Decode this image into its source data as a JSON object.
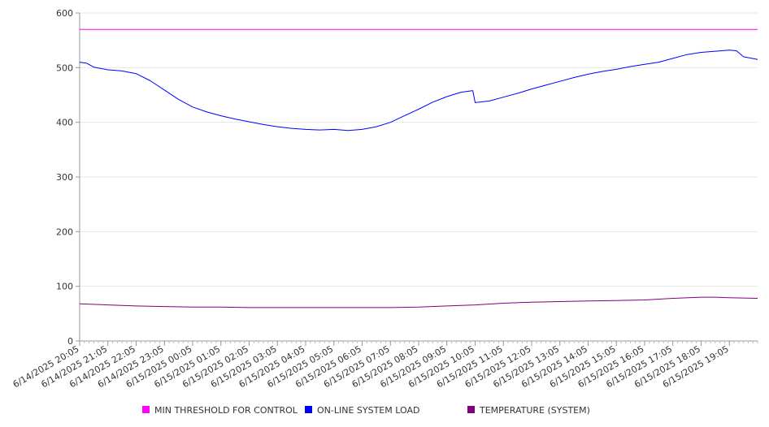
{
  "chart_data": {
    "type": "line",
    "title": "",
    "xlabel": "",
    "ylabel": "",
    "ylim": [
      0,
      600
    ],
    "yticks": [
      0,
      100,
      200,
      300,
      400,
      500,
      600
    ],
    "grid": "horizontal",
    "legend_position": "bottom",
    "x_tick_labels": [
      "6/14/2025 20:05",
      "6/14/2025 21:05",
      "6/14/2025 22:05",
      "6/14/2025 23:05",
      "6/15/2025 00:05",
      "6/15/2025 01:05",
      "6/15/2025 02:05",
      "6/15/2025 03:05",
      "6/15/2025 04:05",
      "6/15/2025 05:05",
      "6/15/2025 06:05",
      "6/15/2025 07:05",
      "6/15/2025 08:05",
      "6/15/2025 09:05",
      "6/15/2025 10:05",
      "6/15/2025 11:05",
      "6/15/2025 12:05",
      "6/15/2025 13:05",
      "6/15/2025 14:05",
      "6/15/2025 15:05",
      "6/15/2025 16:05",
      "6/15/2025 17:05",
      "6/15/2025 18:05",
      "6/15/2025 19:05"
    ],
    "x_range": [
      "6/14/2025 20:05",
      "6/15/2025 20:05"
    ],
    "series": [
      {
        "name": "MIN THRESHOLD FOR CONTROL",
        "color": "#ff00ff",
        "points": [
          [
            "6/14/2025 20:05",
            570
          ],
          [
            "6/15/2025 20:05",
            570
          ]
        ]
      },
      {
        "name": "ON-LINE SYSTEM LOAD",
        "color": "#0000ff",
        "points": [
          [
            "6/14/2025 20:05",
            510
          ],
          [
            "6/14/2025 20:20",
            508
          ],
          [
            "6/14/2025 20:35",
            501
          ],
          [
            "6/14/2025 21:05",
            496
          ],
          [
            "6/14/2025 21:35",
            494
          ],
          [
            "6/14/2025 22:05",
            489
          ],
          [
            "6/14/2025 22:35",
            476
          ],
          [
            "6/14/2025 23:05",
            459
          ],
          [
            "6/14/2025 23:35",
            442
          ],
          [
            "6/15/2025 00:05",
            428
          ],
          [
            "6/15/2025 00:35",
            419
          ],
          [
            "6/15/2025 01:05",
            412
          ],
          [
            "6/15/2025 01:35",
            406
          ],
          [
            "6/15/2025 02:05",
            401
          ],
          [
            "6/15/2025 02:35",
            396
          ],
          [
            "6/15/2025 03:05",
            392
          ],
          [
            "6/15/2025 03:35",
            389
          ],
          [
            "6/15/2025 04:05",
            387
          ],
          [
            "6/15/2025 04:35",
            386
          ],
          [
            "6/15/2025 05:05",
            387
          ],
          [
            "6/15/2025 05:35",
            385
          ],
          [
            "6/15/2025 06:05",
            387
          ],
          [
            "6/15/2025 06:35",
            392
          ],
          [
            "6/15/2025 07:05",
            400
          ],
          [
            "6/15/2025 07:35",
            412
          ],
          [
            "6/15/2025 08:05",
            424
          ],
          [
            "6/15/2025 08:35",
            437
          ],
          [
            "6/15/2025 09:05",
            447
          ],
          [
            "6/15/2025 09:35",
            455
          ],
          [
            "6/15/2025 10:00",
            458
          ],
          [
            "6/15/2025 10:05",
            436
          ],
          [
            "6/15/2025 10:35",
            439
          ],
          [
            "6/15/2025 11:05",
            446
          ],
          [
            "6/15/2025 11:35",
            453
          ],
          [
            "6/15/2025 12:05",
            461
          ],
          [
            "6/15/2025 12:35",
            468
          ],
          [
            "6/15/2025 13:05",
            475
          ],
          [
            "6/15/2025 13:35",
            482
          ],
          [
            "6/15/2025 14:05",
            488
          ],
          [
            "6/15/2025 14:35",
            493
          ],
          [
            "6/15/2025 15:05",
            497
          ],
          [
            "6/15/2025 15:35",
            502
          ],
          [
            "6/15/2025 16:05",
            506
          ],
          [
            "6/15/2025 16:35",
            510
          ],
          [
            "6/15/2025 17:05",
            517
          ],
          [
            "6/15/2025 17:35",
            524
          ],
          [
            "6/15/2025 18:05",
            528
          ],
          [
            "6/15/2025 18:35",
            530
          ],
          [
            "6/15/2025 19:05",
            532
          ],
          [
            "6/15/2025 19:20",
            531
          ],
          [
            "6/15/2025 19:35",
            520
          ],
          [
            "6/15/2025 20:05",
            515
          ]
        ]
      },
      {
        "name": "TEMPERATURE (SYSTEM)",
        "color": "#800080",
        "points": [
          [
            "6/14/2025 20:05",
            68
          ],
          [
            "6/14/2025 21:05",
            66
          ],
          [
            "6/14/2025 22:05",
            64
          ],
          [
            "6/14/2025 23:05",
            63
          ],
          [
            "6/15/2025 00:05",
            62
          ],
          [
            "6/15/2025 01:05",
            62
          ],
          [
            "6/15/2025 02:05",
            61
          ],
          [
            "6/15/2025 03:05",
            61
          ],
          [
            "6/15/2025 04:05",
            61
          ],
          [
            "6/15/2025 05:05",
            61
          ],
          [
            "6/15/2025 06:05",
            61
          ],
          [
            "6/15/2025 07:05",
            61
          ],
          [
            "6/15/2025 08:05",
            62
          ],
          [
            "6/15/2025 09:05",
            64
          ],
          [
            "6/15/2025 10:05",
            66
          ],
          [
            "6/15/2025 11:05",
            69
          ],
          [
            "6/15/2025 12:05",
            71
          ],
          [
            "6/15/2025 13:05",
            72
          ],
          [
            "6/15/2025 14:05",
            73
          ],
          [
            "6/15/2025 15:05",
            74
          ],
          [
            "6/15/2025 16:05",
            75
          ],
          [
            "6/15/2025 17:05",
            78
          ],
          [
            "6/15/2025 18:05",
            80
          ],
          [
            "6/15/2025 18:35",
            80
          ],
          [
            "6/15/2025 19:05",
            79
          ],
          [
            "6/15/2025 20:05",
            78
          ]
        ]
      }
    ]
  }
}
